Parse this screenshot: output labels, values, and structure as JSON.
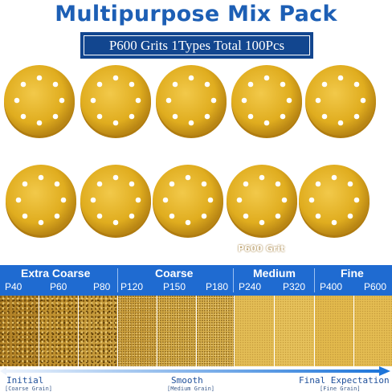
{
  "header": {
    "title": "Multipurpose Mix Pack",
    "subtitle": "P600 Grits 1Types Total 100Pcs"
  },
  "product": {
    "disc_label": "P600 Grit",
    "disc_color": "#e4b324",
    "disc_count_shown": 10
  },
  "categories": [
    {
      "name": "Extra Coarse",
      "grits": [
        "P40",
        "P60",
        "P80"
      ]
    },
    {
      "name": "Coarse",
      "grits": [
        "P120",
        "P150",
        "P180"
      ]
    },
    {
      "name": "Medium",
      "grits": [
        "P240",
        "P320"
      ]
    },
    {
      "name": "Fine",
      "grits": [
        "P400",
        "P600"
      ]
    }
  ],
  "scale": {
    "start_label": "Initial",
    "start_sub": "[Coarse Grain]",
    "mid_label": "Smooth",
    "mid_sub": "[Medium Grain]",
    "end_label": "Final Expectation",
    "end_sub": "[Fine Grain]"
  },
  "colors": {
    "title_blue": "#1d5fb5",
    "band_blue": "#1f6bd1",
    "subtitle_bg": "#12468f",
    "arrow_start": "#e9f0fb",
    "arrow_end": "#1a73d9"
  }
}
